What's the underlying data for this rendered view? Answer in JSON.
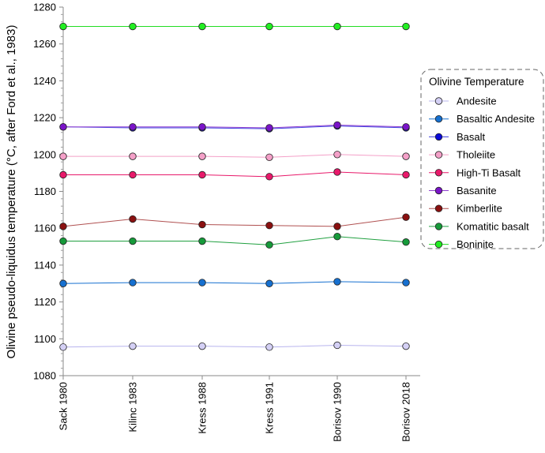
{
  "chart_data": {
    "type": "line",
    "categories": [
      "Sack 1980",
      "Kilinc 1983",
      "Kress 1988",
      "Kress 1991",
      "Borisov 1990",
      "Borisov 2018"
    ],
    "ylabel": "Olivine pseudo-liquidus temperature  (°C, after Ford et al., 1983)",
    "xlabel": "",
    "ylim": [
      1080,
      1280
    ],
    "yticks": [
      1080,
      1100,
      1120,
      1140,
      1160,
      1180,
      1200,
      1220,
      1240,
      1260,
      1280
    ],
    "grid": false,
    "legend": {
      "title": "Olivine Temperature",
      "position": "right"
    },
    "series": [
      {
        "name": "Andesite",
        "color": "#d4d0f5",
        "line_color": "#b8b4ee",
        "values": [
          1095.5,
          1096,
          1096,
          1095.5,
          1096.5,
          1096
        ]
      },
      {
        "name": "Basaltic Andesite",
        "color": "#1670d0",
        "line_color": "#1670d0",
        "values": [
          1130,
          1130.5,
          1130.5,
          1130,
          1131,
          1130.5
        ]
      },
      {
        "name": "Basalt",
        "color": "#0a0ad8",
        "line_color": "#4040e0",
        "values": [
          1215,
          1214.5,
          1214.5,
          1214,
          1215.5,
          1214.5
        ]
      },
      {
        "name": "Tholeiite",
        "color": "#f4a0c8",
        "line_color": "#f4a0c8",
        "values": [
          1199,
          1199,
          1199,
          1198.5,
          1200,
          1199
        ]
      },
      {
        "name": "High-Ti Basalt",
        "color": "#e8196a",
        "line_color": "#e8196a",
        "values": [
          1189,
          1189,
          1189,
          1188,
          1190.5,
          1189
        ]
      },
      {
        "name": "Basanite",
        "color": "#7a14c8",
        "line_color": "#9040d0",
        "values": [
          1215,
          1215,
          1215,
          1214.5,
          1216,
          1215
        ]
      },
      {
        "name": "Kimberlite",
        "color": "#8a1010",
        "line_color": "#b05050",
        "values": [
          1161,
          1165,
          1162,
          1161.5,
          1161,
          1166
        ]
      },
      {
        "name": "Komatitic basalt",
        "color": "#169a3a",
        "line_color": "#20a040",
        "values": [
          1153,
          1153,
          1153,
          1151,
          1155.5,
          1152.5
        ]
      },
      {
        "name": "Boninite",
        "color": "#22ee22",
        "line_color": "#22dd22",
        "values": [
          1269.5,
          1269.5,
          1269.5,
          1269.5,
          1269.5,
          1269.5
        ]
      }
    ]
  }
}
